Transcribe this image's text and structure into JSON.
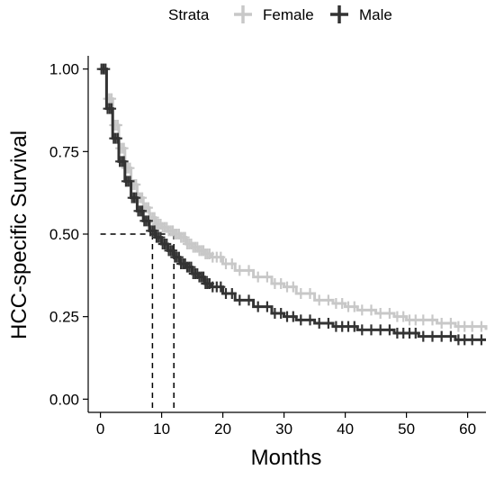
{
  "chart_data": {
    "type": "line",
    "subtype": "kaplan-meier step curves with censor marks",
    "title": "",
    "xlabel": "Months",
    "ylabel": "HCC-specific Survival",
    "xlim": [
      -2,
      63
    ],
    "ylim": [
      -0.04,
      1.04
    ],
    "xticks": [
      0,
      10,
      20,
      30,
      40,
      50,
      60
    ],
    "yticks": [
      0.0,
      0.25,
      0.5,
      0.75,
      1.0
    ],
    "ytick_labels": [
      "0.00",
      "0.25",
      "0.50",
      "0.75",
      "1.00"
    ],
    "grid": false,
    "legend": {
      "title": "Strata",
      "position": "top"
    },
    "median_lines": [
      {
        "series": "Male",
        "x": 8.5,
        "y": 0.5
      },
      {
        "series": "Female",
        "x": 12.0,
        "y": 0.5
      }
    ],
    "series": [
      {
        "name": "Female",
        "color": "#c8c8c8",
        "x": [
          0,
          1,
          2,
          3,
          4,
          5,
          6,
          7,
          8,
          9,
          10,
          11,
          12,
          13,
          14,
          15,
          16,
          17,
          18,
          20,
          22,
          25,
          28,
          30,
          32,
          35,
          38,
          40,
          42,
          45,
          48,
          50,
          52,
          55,
          58,
          60,
          63
        ],
        "y": [
          1.0,
          0.91,
          0.83,
          0.76,
          0.7,
          0.65,
          0.61,
          0.58,
          0.55,
          0.53,
          0.52,
          0.51,
          0.5,
          0.49,
          0.47,
          0.46,
          0.45,
          0.44,
          0.43,
          0.41,
          0.39,
          0.37,
          0.35,
          0.34,
          0.32,
          0.3,
          0.29,
          0.28,
          0.27,
          0.26,
          0.25,
          0.24,
          0.24,
          0.23,
          0.22,
          0.22,
          0.21
        ]
      },
      {
        "name": "Male",
        "color": "#333333",
        "x": [
          0,
          1,
          2,
          3,
          4,
          5,
          6,
          7,
          8,
          9,
          10,
          11,
          12,
          13,
          14,
          15,
          16,
          17,
          18,
          20,
          22,
          25,
          28,
          30,
          32,
          35,
          38,
          40,
          42,
          45,
          48,
          50,
          52,
          55,
          58,
          60,
          63
        ],
        "y": [
          1.0,
          0.88,
          0.79,
          0.72,
          0.66,
          0.61,
          0.57,
          0.54,
          0.51,
          0.49,
          0.47,
          0.45,
          0.43,
          0.41,
          0.4,
          0.38,
          0.37,
          0.35,
          0.34,
          0.32,
          0.3,
          0.28,
          0.26,
          0.25,
          0.24,
          0.23,
          0.22,
          0.22,
          0.21,
          0.21,
          0.2,
          0.2,
          0.19,
          0.19,
          0.18,
          0.18,
          0.18
        ]
      }
    ]
  }
}
